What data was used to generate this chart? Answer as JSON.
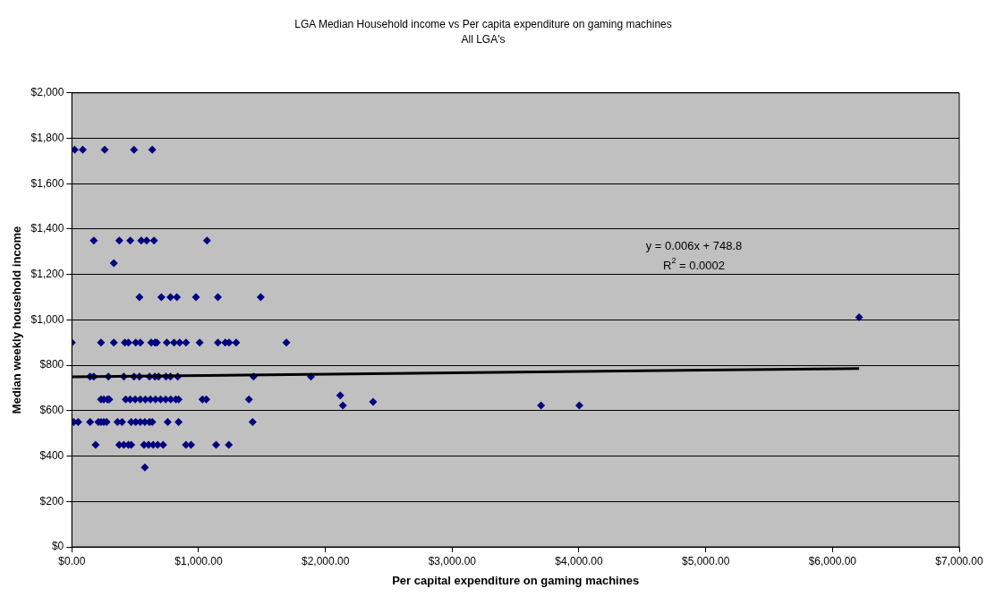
{
  "chart_data": {
    "type": "scatter",
    "title": "LGA Median Household income vs Per capita expenditure on gaming machines",
    "subtitle": "All LGA's",
    "xlabel": "Per capital expenditure on gaming machines",
    "ylabel": "Median weekly household income",
    "xlim": [
      0,
      7000
    ],
    "xticks": [
      {
        "value": 0,
        "label": "$0.00"
      },
      {
        "value": 1000,
        "label": "$1,000.00"
      },
      {
        "value": 2000,
        "label": "$2,000.00"
      },
      {
        "value": 3000,
        "label": "$3,000.00"
      },
      {
        "value": 4000,
        "label": "$4,000.00"
      },
      {
        "value": 5000,
        "label": "$5,000.00"
      },
      {
        "value": 6000,
        "label": "$6,000.00"
      },
      {
        "value": 7000,
        "label": "$7,000.00"
      }
    ],
    "ylim": [
      0,
      2000
    ],
    "yticks": [
      {
        "value": 0,
        "label": "$0"
      },
      {
        "value": 200,
        "label": "$200"
      },
      {
        "value": 400,
        "label": "$400"
      },
      {
        "value": 600,
        "label": "$600"
      },
      {
        "value": 800,
        "label": "$800"
      },
      {
        "value": 1000,
        "label": "$1,000"
      },
      {
        "value": 1200,
        "label": "$1,200"
      },
      {
        "value": 1400,
        "label": "$1,400"
      },
      {
        "value": 1600,
        "label": "$1,600"
      },
      {
        "value": 1800,
        "label": "$1,800"
      },
      {
        "value": 2000,
        "label": "$2,000"
      }
    ],
    "grid": "y",
    "legend": false,
    "marker": "diamond",
    "series": [
      {
        "color": "#000080",
        "x": [
          22,
          86,
          259,
          490,
          634,
          173,
          374,
          461,
          547,
          590,
          648,
          1066,
          331,
          533,
          706,
          778,
          828,
          979,
          1152,
          1490,
          0,
          230,
          331,
          418,
          446,
          504,
          540,
          626,
          655,
          670,
          749,
          806,
          850,
          900,
          1008,
          1152,
          1210,
          1240,
          1296,
          1692,
          144,
          173,
          288,
          410,
          490,
          533,
          612,
          655,
          684,
          742,
          778,
          835,
          1433,
          1886,
          230,
          252,
          281,
          295,
          425,
          460,
          500,
          540,
          580,
          620,
          660,
          700,
          740,
          780,
          820,
          842,
          1030,
          1060,
          1397,
          2117,
          2138,
          2376,
          3701,
          4003,
          6210,
          14,
          50,
          144,
          209,
          230,
          252,
          274,
          360,
          396,
          468,
          504,
          540,
          576,
          612,
          634,
          756,
          842,
          1426,
          187,
          374,
          410,
          446,
          468,
          569,
          605,
          641,
          677,
          720,
          900,
          940,
          1138,
          1238,
          576
        ],
        "values": [
          1750,
          1750,
          1750,
          1750,
          1750,
          1350,
          1350,
          1350,
          1350,
          1350,
          1350,
          1350,
          1250,
          1100,
          1100,
          1100,
          1100,
          1100,
          1100,
          1100,
          900,
          900,
          900,
          900,
          900,
          900,
          900,
          900,
          900,
          900,
          900,
          900,
          900,
          900,
          900,
          900,
          900,
          900,
          900,
          900,
          750,
          750,
          750,
          750,
          750,
          750,
          750,
          750,
          750,
          750,
          750,
          750,
          750,
          750,
          650,
          650,
          650,
          650,
          650,
          650,
          650,
          650,
          650,
          650,
          650,
          650,
          650,
          650,
          650,
          650,
          650,
          650,
          650,
          667,
          623,
          639,
          623,
          623,
          1011,
          550,
          550,
          550,
          550,
          550,
          550,
          550,
          550,
          550,
          550,
          550,
          550,
          550,
          550,
          550,
          550,
          550,
          550,
          450,
          450,
          450,
          450,
          450,
          450,
          450,
          450,
          450,
          450,
          450,
          450,
          450,
          450,
          350
        ]
      },
      {
        "type": "line",
        "color": "#000000",
        "marker": "none",
        "x": [
          0,
          6210
        ],
        "values": [
          748.8,
          786
        ]
      }
    ],
    "annotations": [
      "y = 0.006x + 748.8",
      "R$^{2}$ = 0.0002"
    ]
  }
}
